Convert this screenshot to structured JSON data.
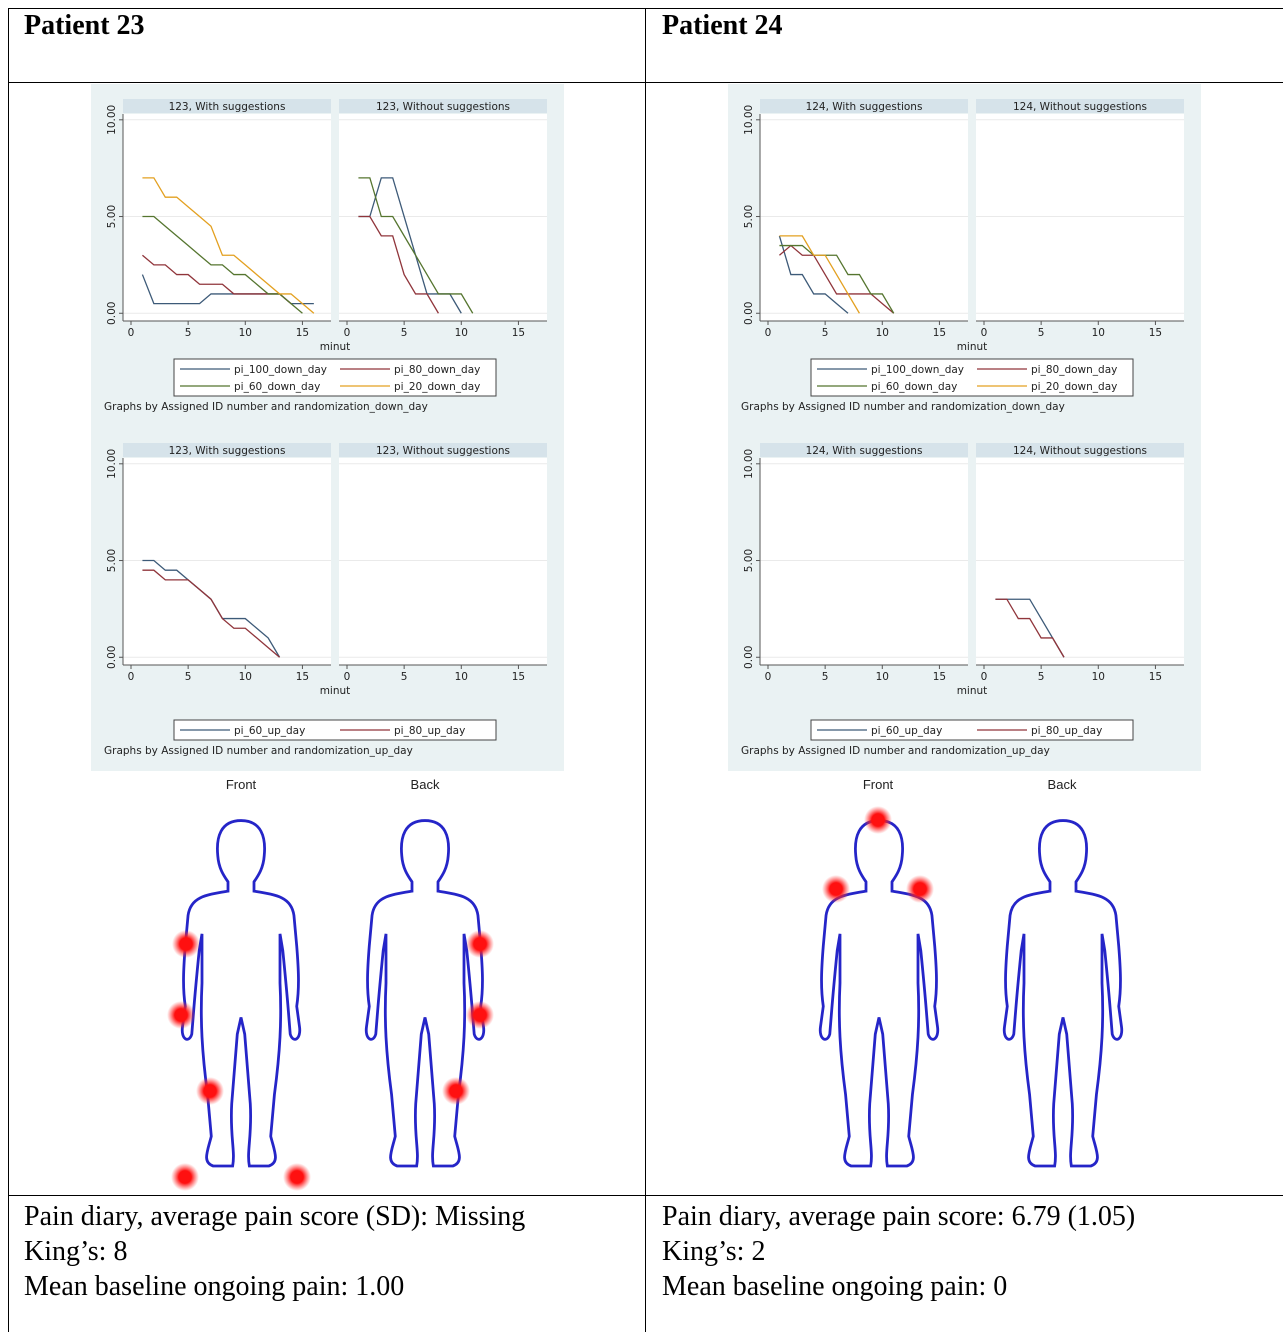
{
  "columns": [
    {
      "header": "Patient 23",
      "figures": [
        {
          "type": "line",
          "x_label": "minut",
          "note": "Graphs by Assigned ID number and randomization_down_day",
          "xlim": [
            -0.7,
            17.5
          ],
          "ylim": [
            -0.4,
            10.3
          ],
          "xticks": [
            0,
            5,
            10,
            15
          ],
          "yticks": [
            {
              "value": 0,
              "label": "0.00"
            },
            {
              "value": 5,
              "label": "5.00"
            },
            {
              "value": 10,
              "label": "10.00"
            }
          ],
          "grid": true,
          "series": [
            {
              "name": "pi_100_down_day",
              "color": "#3d5a78"
            },
            {
              "name": "pi_80_down_day",
              "color": "#90353b"
            },
            {
              "name": "pi_60_down_day",
              "color": "#55752f"
            },
            {
              "name": "pi_20_down_day",
              "color": "#e3a020"
            }
          ],
          "panels": [
            {
              "title": "123, With suggestions",
              "lines": [
                {
                  "x": [
                    1,
                    2,
                    3,
                    4,
                    5,
                    6,
                    7,
                    8,
                    9,
                    10,
                    11,
                    12,
                    13,
                    14,
                    15,
                    16
                  ],
                  "values": [
                    2,
                    0.5,
                    0.5,
                    0.5,
                    0.5,
                    0.5,
                    1,
                    1,
                    1,
                    1,
                    1,
                    1,
                    1,
                    0.5,
                    0.5,
                    0.5
                  ]
                },
                {
                  "x": [
                    1,
                    2,
                    3,
                    4,
                    5,
                    6,
                    7,
                    8,
                    9,
                    10,
                    11,
                    12,
                    13,
                    14
                  ],
                  "values": [
                    3,
                    2.5,
                    2.5,
                    2,
                    2,
                    1.5,
                    1.5,
                    1.5,
                    1,
                    1,
                    1,
                    1,
                    1,
                    0.5
                  ]
                },
                {
                  "x": [
                    1,
                    2,
                    3,
                    4,
                    5,
                    6,
                    7,
                    8,
                    9,
                    10,
                    11,
                    12,
                    13,
                    14,
                    15
                  ],
                  "values": [
                    5,
                    5,
                    4.5,
                    4,
                    3.5,
                    3,
                    2.5,
                    2.5,
                    2,
                    2,
                    1.5,
                    1,
                    1,
                    0.5,
                    0
                  ]
                },
                {
                  "x": [
                    1,
                    2,
                    3,
                    4,
                    5,
                    6,
                    7,
                    8,
                    9,
                    10,
                    11,
                    12,
                    13,
                    14,
                    15,
                    16
                  ],
                  "values": [
                    7,
                    7,
                    6,
                    6,
                    5.5,
                    5,
                    4.5,
                    3,
                    3,
                    2.5,
                    2,
                    1.5,
                    1,
                    1,
                    0.5,
                    0
                  ]
                }
              ]
            },
            {
              "title": "123, Without suggestions",
              "lines": [
                {
                  "x": [
                    1,
                    2,
                    3,
                    4,
                    5,
                    6,
                    7,
                    8,
                    9,
                    10
                  ],
                  "values": [
                    5,
                    5,
                    7,
                    7,
                    5,
                    3,
                    1,
                    1,
                    1,
                    0
                  ]
                },
                {
                  "x": [
                    1,
                    2,
                    3,
                    4,
                    5,
                    6,
                    7,
                    8
                  ],
                  "values": [
                    5,
                    5,
                    4,
                    4,
                    2,
                    1,
                    1,
                    0
                  ]
                },
                {
                  "x": [
                    1,
                    2,
                    3,
                    4,
                    5,
                    6,
                    7,
                    8,
                    9,
                    10,
                    11
                  ],
                  "values": [
                    7,
                    7,
                    5,
                    5,
                    4,
                    3,
                    2,
                    1,
                    1,
                    1,
                    0
                  ]
                },
                {
                  "x": [],
                  "values": []
                }
              ]
            }
          ]
        },
        {
          "type": "line",
          "x_label": "minut",
          "note": "Graphs by Assigned ID number and randomization_up_day",
          "xlim": [
            -0.7,
            17.5
          ],
          "ylim": [
            -0.4,
            10.3
          ],
          "xticks": [
            0,
            5,
            10,
            15
          ],
          "yticks": [
            {
              "value": 0,
              "label": "0.00"
            },
            {
              "value": 5,
              "label": "5.00"
            },
            {
              "value": 10,
              "label": "10.00"
            }
          ],
          "grid": true,
          "series": [
            {
              "name": "pi_60_up_day",
              "color": "#3d5a78"
            },
            {
              "name": "pi_80_up_day",
              "color": "#90353b"
            }
          ],
          "panels": [
            {
              "title": "123, With suggestions",
              "lines": [
                {
                  "x": [
                    1,
                    2,
                    3,
                    4,
                    5,
                    6,
                    7,
                    8,
                    9,
                    10,
                    11,
                    12,
                    13
                  ],
                  "values": [
                    5,
                    5,
                    4.5,
                    4.5,
                    4,
                    3.5,
                    3,
                    2,
                    2,
                    2,
                    1.5,
                    1,
                    0
                  ]
                },
                {
                  "x": [
                    1,
                    2,
                    3,
                    4,
                    5,
                    6,
                    7,
                    8,
                    9,
                    10,
                    11,
                    12,
                    13
                  ],
                  "values": [
                    4.5,
                    4.5,
                    4,
                    4,
                    4,
                    3.5,
                    3,
                    2,
                    1.5,
                    1.5,
                    1,
                    0.5,
                    0
                  ]
                }
              ]
            },
            {
              "title": "123, Without suggestions",
              "lines": [
                {
                  "x": [],
                  "values": []
                },
                {
                  "x": [],
                  "values": []
                }
              ]
            }
          ]
        }
      ],
      "body_map": {
        "front_label": "Front",
        "back_label": "Back"
      },
      "summary": [
        "Pain diary, average pain score (SD): Missing",
        "King’s: 8",
        "Mean baseline ongoing pain: 1.00"
      ]
    },
    {
      "header": "Patient 24",
      "figures": [
        {
          "type": "line",
          "x_label": "minut",
          "note": "Graphs by Assigned ID number and randomization_down_day",
          "xlim": [
            -0.7,
            17.5
          ],
          "ylim": [
            -0.4,
            10.3
          ],
          "xticks": [
            0,
            5,
            10,
            15
          ],
          "yticks": [
            {
              "value": 0,
              "label": "0.00"
            },
            {
              "value": 5,
              "label": "5.00"
            },
            {
              "value": 10,
              "label": "10.00"
            }
          ],
          "grid": true,
          "series": [
            {
              "name": "pi_100_down_day",
              "color": "#3d5a78"
            },
            {
              "name": "pi_80_down_day",
              "color": "#90353b"
            },
            {
              "name": "pi_60_down_day",
              "color": "#55752f"
            },
            {
              "name": "pi_20_down_day",
              "color": "#e3a020"
            }
          ],
          "panels": [
            {
              "title": "124, With suggestions",
              "lines": [
                {
                  "x": [
                    1,
                    2,
                    3,
                    4,
                    5,
                    6,
                    7
                  ],
                  "values": [
                    4,
                    2,
                    2,
                    1,
                    1,
                    0.5,
                    0
                  ]
                },
                {
                  "x": [
                    1,
                    2,
                    3,
                    4,
                    5,
                    6,
                    7,
                    8,
                    9,
                    10,
                    11
                  ],
                  "values": [
                    3,
                    3.5,
                    3,
                    3,
                    2,
                    1,
                    1,
                    1,
                    1,
                    0.5,
                    0
                  ]
                },
                {
                  "x": [
                    1,
                    2,
                    3,
                    4,
                    5,
                    6,
                    7,
                    8,
                    9,
                    10,
                    11
                  ],
                  "values": [
                    3.5,
                    3.5,
                    3.5,
                    3,
                    3,
                    3,
                    2,
                    2,
                    1,
                    1,
                    0
                  ]
                },
                {
                  "x": [
                    1,
                    2,
                    3,
                    4,
                    5,
                    6,
                    7,
                    8
                  ],
                  "values": [
                    4,
                    4,
                    4,
                    3,
                    3,
                    2,
                    1,
                    0
                  ]
                }
              ]
            },
            {
              "title": "124, Without suggestions",
              "lines": [
                {
                  "x": [],
                  "values": []
                },
                {
                  "x": [],
                  "values": []
                },
                {
                  "x": [],
                  "values": []
                },
                {
                  "x": [],
                  "values": []
                }
              ]
            }
          ]
        },
        {
          "type": "line",
          "x_label": "minut",
          "note": "Graphs by Assigned ID number and randomization_up_day",
          "xlim": [
            -0.7,
            17.5
          ],
          "ylim": [
            -0.4,
            10.3
          ],
          "xticks": [
            0,
            5,
            10,
            15
          ],
          "yticks": [
            {
              "value": 0,
              "label": "0.00"
            },
            {
              "value": 5,
              "label": "5.00"
            },
            {
              "value": 10,
              "label": "10.00"
            }
          ],
          "grid": true,
          "series": [
            {
              "name": "pi_60_up_day",
              "color": "#3d5a78"
            },
            {
              "name": "pi_80_up_day",
              "color": "#90353b"
            }
          ],
          "panels": [
            {
              "title": "124, With suggestions",
              "lines": [
                {
                  "x": [],
                  "values": []
                },
                {
                  "x": [],
                  "values": []
                }
              ]
            },
            {
              "title": "124, Without suggestions",
              "lines": [
                {
                  "x": [
                    1,
                    2,
                    3,
                    4,
                    5,
                    6,
                    7
                  ],
                  "values": [
                    3,
                    3,
                    3,
                    3,
                    2,
                    1,
                    0
                  ]
                },
                {
                  "x": [
                    1,
                    2,
                    3,
                    4,
                    5,
                    6,
                    7
                  ],
                  "values": [
                    3,
                    3,
                    2,
                    2,
                    1,
                    1,
                    0
                  ]
                }
              ]
            }
          ]
        }
      ],
      "body_map": {
        "front_label": "Front",
        "back_label": "Back"
      },
      "summary": [
        "Pain diary, average pain score: 6.79 (1.05)",
        "King’s: 2",
        "Mean baseline ongoing pain: 0"
      ]
    }
  ]
}
